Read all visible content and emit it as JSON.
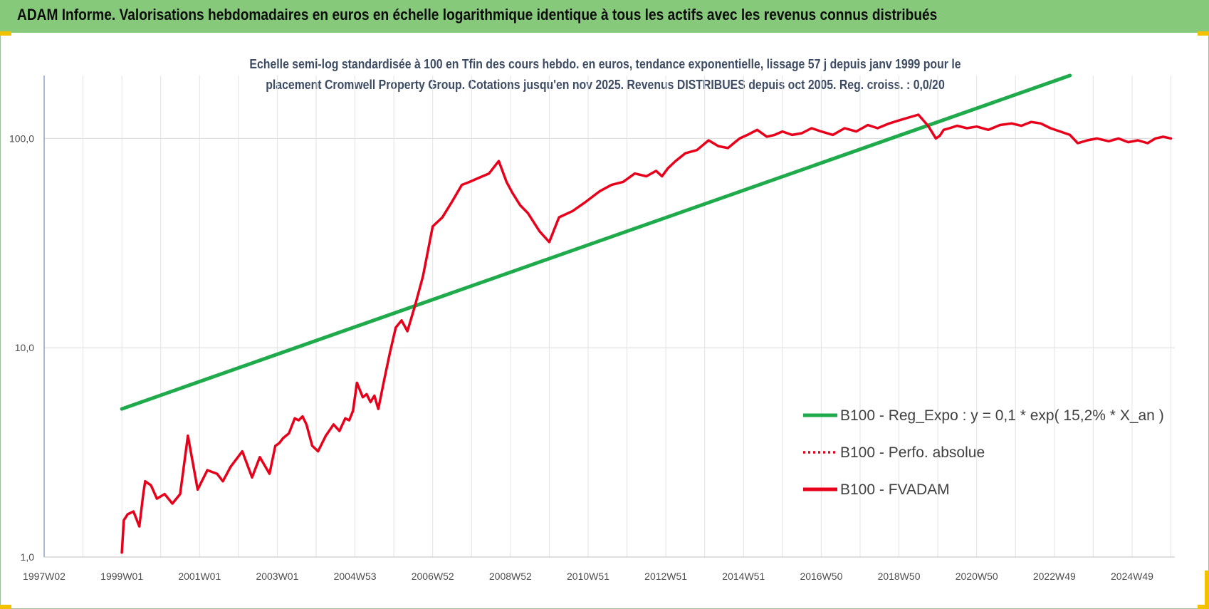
{
  "header": {
    "title": "ADAM Informe. Valorisations hebdomadaires en euros en échelle logarithmique identique à tous les actifs avec les revenus connus distribués"
  },
  "chart_data": {
    "type": "line",
    "title": "",
    "subtitle_lines": [
      "Echelle semi-log standardisée à 100 en Tfin des cours hebdo. en euros, tendance exponentielle, lissage 57 j depuis janv 1999 pour le",
      "placement Cromwell Property Group. Cotations jusqu'en nov 2025. Revenus DISTRIBUES depuis oct 2005. Reg. croiss. : 0,0/20"
    ],
    "y_scale": "log",
    "ylim": [
      1,
      200
    ],
    "xlim": [
      1997.0,
      2026.1
    ],
    "y_ticks": [
      {
        "value": 1,
        "label": "1,0"
      },
      {
        "value": 10,
        "label": "10,0"
      },
      {
        "value": 100,
        "label": "100,0"
      }
    ],
    "x_ticks": [
      {
        "value": 1997.0,
        "label": "1997W02"
      },
      {
        "value": 1999.0,
        "label": "1999W01"
      },
      {
        "value": 2001.0,
        "label": "2001W01"
      },
      {
        "value": 2003.0,
        "label": "2003W01"
      },
      {
        "value": 2005.0,
        "label": "2004W53"
      },
      {
        "value": 2007.0,
        "label": "2006W52"
      },
      {
        "value": 2009.0,
        "label": "2008W52"
      },
      {
        "value": 2011.0,
        "label": "2010W51"
      },
      {
        "value": 2013.0,
        "label": "2012W51"
      },
      {
        "value": 2015.0,
        "label": "2014W51"
      },
      {
        "value": 2017.0,
        "label": "2016W50"
      },
      {
        "value": 2019.0,
        "label": "2018W50"
      },
      {
        "value": 2021.0,
        "label": "2020W50"
      },
      {
        "value": 2023.0,
        "label": "2022W49"
      },
      {
        "value": 2025.0,
        "label": "2024W49"
      }
    ],
    "grid": "vertical",
    "legend_position": "right",
    "series": [
      {
        "name": "B100 - Reg_Expo : y = 0,1 * exp( 15,2% *  X_an )",
        "color": "#1faa4b",
        "style": "solid",
        "x": [
          1999.0,
          2023.4
        ],
        "y": [
          5.1,
          200
        ]
      },
      {
        "name": "B100 - Perfo. absolue",
        "color": "#e8001a",
        "style": "dotted",
        "x": [],
        "y": []
      },
      {
        "name": "B100 - FVADAM",
        "color": "#e8001a",
        "style": "solid",
        "x": [
          1999.0,
          1999.05,
          1999.15,
          1999.3,
          1999.45,
          1999.55,
          1999.6,
          1999.75,
          1999.9,
          2000.1,
          2000.3,
          2000.5,
          2000.7,
          2000.95,
          2001.2,
          2001.45,
          2001.6,
          2001.8,
          2002.1,
          2002.35,
          2002.55,
          2002.8,
          2002.95,
          2003.05,
          2003.15,
          2003.3,
          2003.45,
          2003.55,
          2003.65,
          2003.75,
          2003.9,
          2004.05,
          2004.25,
          2004.45,
          2004.6,
          2004.75,
          2004.85,
          2004.95,
          2005.05,
          2005.2,
          2005.3,
          2005.4,
          2005.5,
          2005.6,
          2005.75,
          2005.9,
          2006.05,
          2006.2,
          2006.35,
          2006.55,
          2006.75,
          2007.0,
          2007.25,
          2007.5,
          2007.75,
          2007.95,
          2008.2,
          2008.45,
          2008.7,
          2008.9,
          2009.05,
          2009.25,
          2009.45,
          2009.75,
          2010.0,
          2010.25,
          2010.6,
          2010.95,
          2011.3,
          2011.6,
          2011.9,
          2012.2,
          2012.5,
          2012.75,
          2012.9,
          2013.05,
          2013.25,
          2013.5,
          2013.8,
          2014.1,
          2014.35,
          2014.6,
          2014.75,
          2014.9,
          2015.1,
          2015.35,
          2015.6,
          2015.8,
          2016.0,
          2016.25,
          2016.5,
          2016.75,
          2017.0,
          2017.3,
          2017.6,
          2017.9,
          2018.2,
          2018.45,
          2018.75,
          2019.0,
          2019.25,
          2019.5,
          2019.75,
          2019.95,
          2020.05,
          2020.15,
          2020.3,
          2020.5,
          2020.75,
          2021.0,
          2021.3,
          2021.6,
          2021.9,
          2022.15,
          2022.4,
          2022.65,
          2022.9,
          2023.15,
          2023.4,
          2023.6,
          2023.85,
          2024.1,
          2024.4,
          2024.65,
          2024.9,
          2025.15,
          2025.4,
          2025.6,
          2025.8,
          2026.0
        ],
        "y": [
          1.05,
          1.5,
          1.6,
          1.65,
          1.4,
          2.0,
          2.3,
          2.2,
          1.9,
          2.0,
          1.8,
          2.0,
          3.8,
          2.1,
          2.6,
          2.5,
          2.3,
          2.7,
          3.2,
          2.4,
          3.0,
          2.5,
          3.4,
          3.5,
          3.7,
          3.9,
          4.6,
          4.5,
          4.7,
          4.3,
          3.4,
          3.2,
          3.8,
          4.3,
          4.0,
          4.6,
          4.5,
          5.0,
          6.8,
          5.8,
          6.0,
          5.5,
          5.9,
          5.1,
          7.0,
          9.5,
          12.5,
          13.5,
          12.0,
          16.0,
          22.0,
          38.0,
          42.0,
          50.0,
          60.0,
          62.0,
          65.0,
          68.0,
          78.0,
          62.0,
          55.0,
          48.0,
          44.0,
          36.0,
          32.0,
          42.0,
          45.0,
          50.0,
          56.0,
          60.0,
          62.0,
          68.0,
          66.0,
          70.0,
          66.0,
          72.0,
          78.0,
          85.0,
          88.0,
          98.0,
          92.0,
          90.0,
          95.0,
          100.0,
          104.0,
          110.0,
          102.0,
          104.0,
          108.0,
          104.0,
          106.0,
          112.0,
          108.0,
          104.0,
          112.0,
          108.0,
          116.0,
          112.0,
          118.0,
          122.0,
          126.0,
          130.0,
          115.0,
          100.0,
          103.0,
          110.0,
          112.0,
          115.0,
          112.0,
          114.0,
          110.0,
          116.0,
          118.0,
          115.0,
          120.0,
          118.0,
          112.0,
          108.0,
          104.0,
          95.0,
          98.0,
          100.0,
          97.0,
          100.0,
          96.0,
          98.0,
          95.0,
          100.0,
          102.0,
          100.0
        ]
      }
    ]
  }
}
